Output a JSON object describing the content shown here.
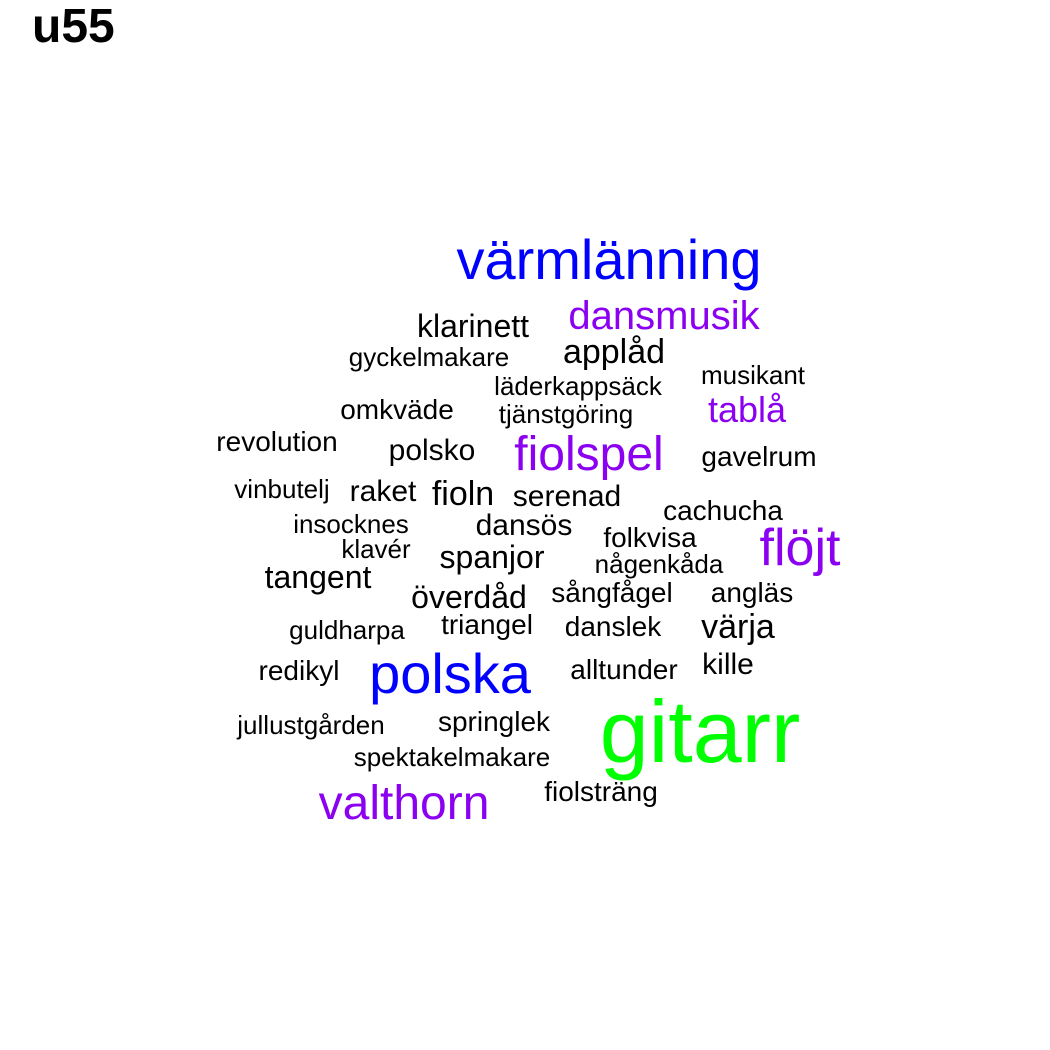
{
  "title": "u55",
  "colors": {
    "black": "#000000",
    "purple": "#8b00f0",
    "blue": "#0000ff",
    "green": "#00ff00"
  },
  "words": [
    {
      "text": "gitarr",
      "color": "green"
    },
    {
      "text": "värmlänning",
      "color": "blue"
    },
    {
      "text": "polska",
      "color": "blue"
    },
    {
      "text": "valthorn",
      "color": "purple"
    },
    {
      "text": "fiolspel",
      "color": "purple"
    },
    {
      "text": "flöjt",
      "color": "purple"
    },
    {
      "text": "dansmusik",
      "color": "purple"
    },
    {
      "text": "tablå",
      "color": "purple"
    },
    {
      "text": "klarinett",
      "color": "black"
    },
    {
      "text": "applåd",
      "color": "black"
    },
    {
      "text": "gyckelmakare",
      "color": "black"
    },
    {
      "text": "musikant",
      "color": "black"
    },
    {
      "text": "läderkappsäck",
      "color": "black"
    },
    {
      "text": "omkväde",
      "color": "black"
    },
    {
      "text": "tjänstgöring",
      "color": "black"
    },
    {
      "text": "revolution",
      "color": "black"
    },
    {
      "text": "polsko",
      "color": "black"
    },
    {
      "text": "gavelrum",
      "color": "black"
    },
    {
      "text": "vinbutelj",
      "color": "black"
    },
    {
      "text": "raket",
      "color": "black"
    },
    {
      "text": "fioln",
      "color": "black"
    },
    {
      "text": "serenad",
      "color": "black"
    },
    {
      "text": "cachucha",
      "color": "black"
    },
    {
      "text": "insocknes",
      "color": "black"
    },
    {
      "text": "dansös",
      "color": "black"
    },
    {
      "text": "folkvisa",
      "color": "black"
    },
    {
      "text": "klavér",
      "color": "black"
    },
    {
      "text": "spanjor",
      "color": "black"
    },
    {
      "text": "någenkåda",
      "color": "black"
    },
    {
      "text": "tangent",
      "color": "black"
    },
    {
      "text": "överdåd",
      "color": "black"
    },
    {
      "text": "sångfågel",
      "color": "black"
    },
    {
      "text": "angläs",
      "color": "black"
    },
    {
      "text": "guldharpa",
      "color": "black"
    },
    {
      "text": "triangel",
      "color": "black"
    },
    {
      "text": "danslek",
      "color": "black"
    },
    {
      "text": "värja",
      "color": "black"
    },
    {
      "text": "redikyl",
      "color": "black"
    },
    {
      "text": "alltunder",
      "color": "black"
    },
    {
      "text": "kille",
      "color": "black"
    },
    {
      "text": "jullustgården",
      "color": "black"
    },
    {
      "text": "springlek",
      "color": "black"
    },
    {
      "text": "spektakelmakare",
      "color": "black"
    },
    {
      "text": "fiolsträng",
      "color": "black"
    }
  ]
}
